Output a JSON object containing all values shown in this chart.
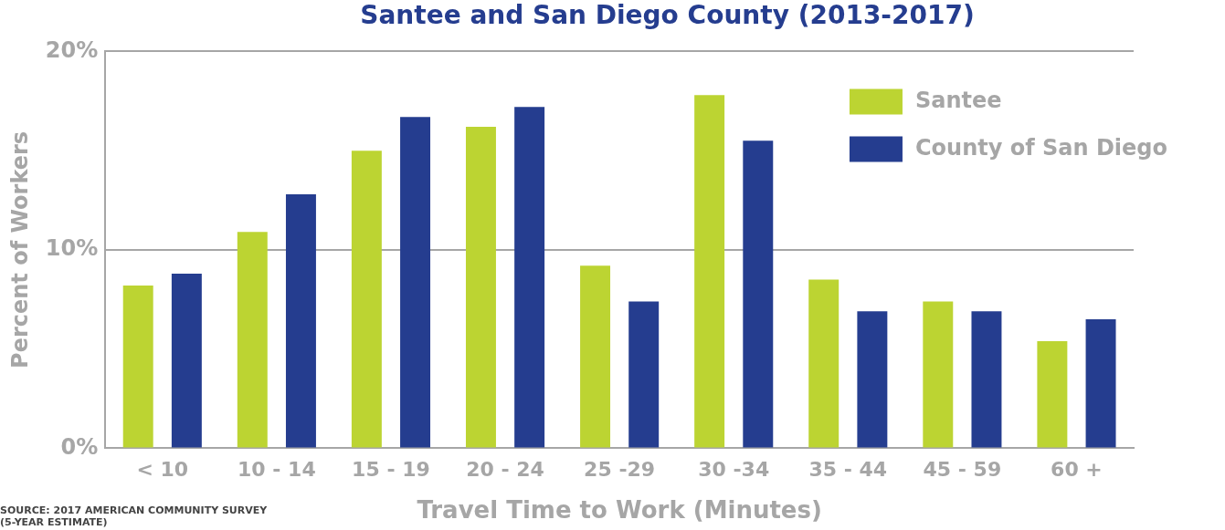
{
  "chart_data": {
    "type": "bar",
    "title": "Santee and San Diego County (2013-2017)",
    "xlabel": "Travel Time to Work (Minutes)",
    "ylabel": "Percent of Workers",
    "categories": [
      "< 10",
      "10 - 14",
      "15 - 19",
      "20 - 24",
      "25 -29",
      "30 -34",
      "35 - 44",
      "45 - 59",
      "60 +"
    ],
    "series": [
      {
        "name": "Santee",
        "color": "#bcd432",
        "values": [
          8.2,
          10.9,
          15.0,
          16.2,
          9.2,
          17.8,
          8.5,
          7.4,
          5.4
        ]
      },
      {
        "name": "County of San Diego",
        "color": "#253d8f",
        "values": [
          8.8,
          12.8,
          16.7,
          17.2,
          7.4,
          15.5,
          6.9,
          6.9,
          6.5
        ]
      }
    ],
    "ylim": [
      0,
      20
    ],
    "yticks": [
      {
        "value": 0,
        "label": "0%"
      },
      {
        "value": 10,
        "label": "10%"
      },
      {
        "value": 20,
        "label": "20%"
      }
    ],
    "grid": "y",
    "legend": "top right",
    "annotations": [
      "SOURCE: 2017 AMERICAN COMMUNITY SURVEY\n(5-YEAR ESTIMATE)"
    ]
  }
}
